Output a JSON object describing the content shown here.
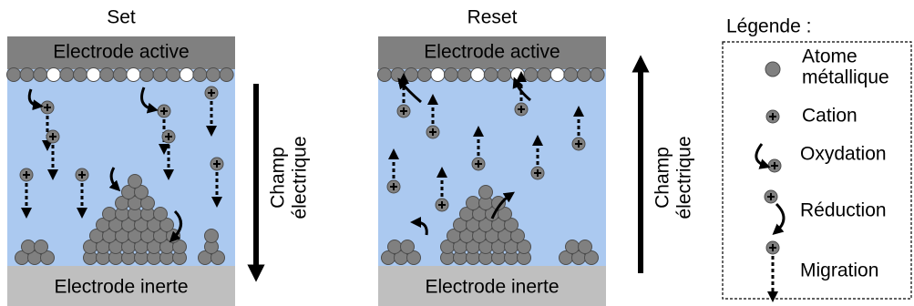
{
  "panels": [
    {
      "title": "Set",
      "top_electrode": "Electrode active",
      "bottom_electrode": "Electrode inerte",
      "field_label": [
        "Champ",
        "électrique"
      ]
    },
    {
      "title": "Reset",
      "top_electrode": "Electrode active",
      "bottom_electrode": "Electrode inerte",
      "field_label": [
        "Champ",
        "électrique"
      ]
    }
  ],
  "legend": {
    "title": "Légende :",
    "items": [
      {
        "lines": [
          "Atome",
          "métallique"
        ]
      },
      {
        "lines": [
          "Cation"
        ]
      },
      {
        "lines": [
          "Oxydation"
        ]
      },
      {
        "lines": [
          "Réduction"
        ]
      },
      {
        "lines": [
          "Migration"
        ]
      }
    ]
  }
}
